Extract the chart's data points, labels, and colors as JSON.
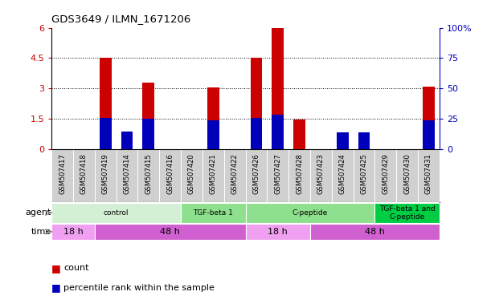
{
  "title": "GDS3649 / ILMN_1671206",
  "samples": [
    "GSM507417",
    "GSM507418",
    "GSM507419",
    "GSM507414",
    "GSM507415",
    "GSM507416",
    "GSM507420",
    "GSM507421",
    "GSM507422",
    "GSM507426",
    "GSM507427",
    "GSM507428",
    "GSM507423",
    "GSM507424",
    "GSM507425",
    "GSM507429",
    "GSM507430",
    "GSM507431"
  ],
  "count_values": [
    0,
    0,
    4.5,
    0.25,
    3.3,
    0,
    0,
    3.05,
    0,
    4.5,
    6.0,
    1.45,
    0,
    0.12,
    0.28,
    0,
    0,
    3.1
  ],
  "percentile_values": [
    0,
    0,
    25.8,
    14.2,
    25.3,
    0,
    0,
    23.7,
    0,
    25.8,
    28.3,
    0,
    0,
    13.7,
    13.7,
    0,
    0,
    23.7
  ],
  "ylim_left": [
    0,
    6
  ],
  "ylim_right": [
    0,
    100
  ],
  "yticks_left": [
    0,
    1.5,
    3,
    4.5,
    6
  ],
  "yticks_right": [
    0,
    25,
    50,
    75,
    100
  ],
  "ytick_labels_left": [
    "0",
    "1.5",
    "3",
    "4.5",
    "6"
  ],
  "ytick_labels_right": [
    "0",
    "25",
    "50",
    "75",
    "100%"
  ],
  "bar_color_count": "#cc0000",
  "bar_color_percentile": "#0000bb",
  "agent_groups": [
    {
      "label": "control",
      "start": 0,
      "end": 5,
      "color": "#d4f0d4"
    },
    {
      "label": "TGF-beta 1",
      "start": 6,
      "end": 8,
      "color": "#8ee08e"
    },
    {
      "label": "C-peptide",
      "start": 9,
      "end": 14,
      "color": "#8ee08e"
    },
    {
      "label": "TGF-beta 1 and\nC-peptide",
      "start": 15,
      "end": 17,
      "color": "#00cc44"
    }
  ],
  "time_groups": [
    {
      "label": "18 h",
      "start": 0,
      "end": 1,
      "color": "#f0a0f0"
    },
    {
      "label": "48 h",
      "start": 2,
      "end": 8,
      "color": "#d060d0"
    },
    {
      "label": "18 h",
      "start": 9,
      "end": 11,
      "color": "#f0a0f0"
    },
    {
      "label": "48 h",
      "start": 12,
      "end": 17,
      "color": "#d060d0"
    }
  ],
  "legend_count_color": "#cc0000",
  "legend_percentile_color": "#0000bb",
  "left_axis_color": "#cc0000",
  "right_axis_color": "#0000bb",
  "sample_box_color": "#d0d0d0",
  "hgrid_values": [
    1.5,
    3.0,
    4.5
  ],
  "bar_width": 0.55
}
